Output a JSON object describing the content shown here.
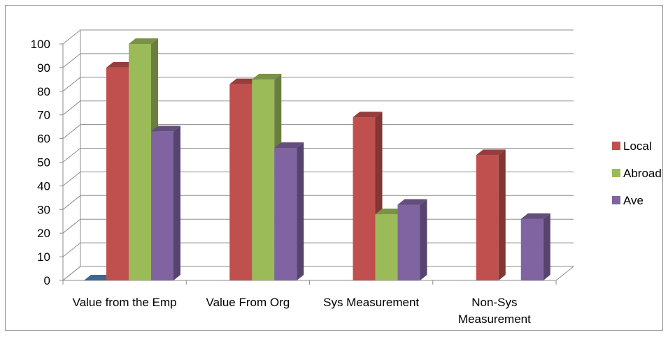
{
  "chart_data": {
    "type": "bar",
    "title": "",
    "xlabel": "",
    "ylabel": "",
    "ylim": [
      0,
      100
    ],
    "yticks": [
      0,
      10,
      20,
      30,
      40,
      50,
      60,
      70,
      80,
      90,
      100
    ],
    "grid": true,
    "legend_position": "right",
    "categories": [
      "Value from the Emp",
      "Value From Org",
      "Sys Measurement",
      "Non-Sys Measurement"
    ],
    "category_label_lines": [
      [
        "Value from the Emp"
      ],
      [
        "Value From Org"
      ],
      [
        "Sys Measurement"
      ],
      [
        "Non-Sys",
        "Measurement"
      ]
    ],
    "zero_series": {
      "values": [
        0,
        null,
        null,
        null
      ],
      "color": "#4F81BD"
    },
    "series": [
      {
        "name": "Local",
        "values": [
          90,
          83,
          69,
          53
        ],
        "color": "#C0504D"
      },
      {
        "name": "Abroad",
        "values": [
          100,
          85,
          28,
          null
        ],
        "color": "#9BBB59"
      },
      {
        "name": "Ave",
        "values": [
          63,
          56,
          32,
          26
        ],
        "color": "#8064A2"
      }
    ]
  }
}
